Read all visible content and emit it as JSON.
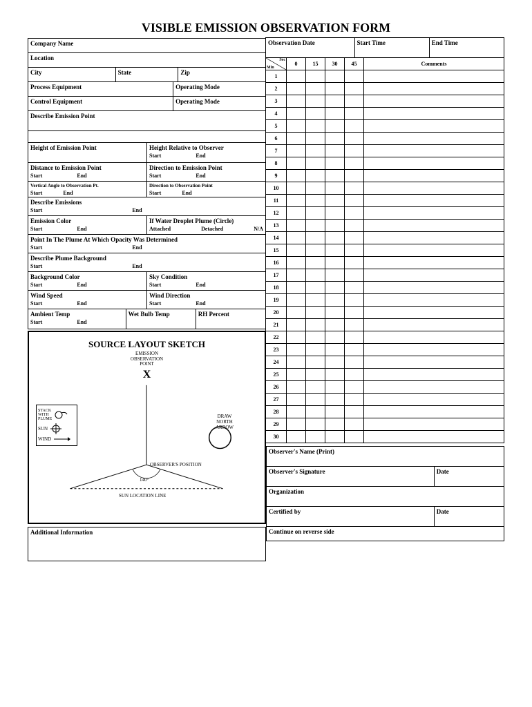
{
  "title": "VISIBLE EMISSION OBSERVATION FORM",
  "left": {
    "company_name": "Company Name",
    "location": "Location",
    "city": "City",
    "state": "State",
    "zip": "Zip",
    "process_equipment": "Process Equipment",
    "operating_mode1": "Operating Mode",
    "control_equipment": "Control Equipment",
    "operating_mode2": "Operating Mode",
    "describe_emission_point": "Describe Emission Point",
    "height_emission_point": "Height of Emission Point",
    "height_relative": "Height Relative to Observer",
    "distance_to_point": "Distance to Emission Point",
    "direction_to_point": "Direction to Emission Point",
    "vertical_angle": "Vertical Angle to Observation Pt.",
    "direction_to_obs": "Direction to Observation Point",
    "describe_emissions": "Describe Emissions",
    "emission_color": "Emission Color",
    "water_droplet": "If Water Droplet Plume (Circle)",
    "attached": "Attached",
    "detached": "Detached",
    "na": "N/A",
    "point_in_plume": "Point In The Plume At Which Opacity Was Determined",
    "describe_plume_bg": "Describe Plume Background",
    "background_color": "Background Color",
    "sky_condition": "Sky Condition",
    "wind_speed": "Wind Speed",
    "wind_direction": "Wind Direction",
    "ambient_temp": "Ambient Temp",
    "wet_bulb": "Wet Bulb Temp",
    "rh_percent": "RH Percent",
    "start": "Start",
    "end": "End",
    "additional_info": "Additional Information"
  },
  "sketch": {
    "title": "SOURCE LAYOUT SKETCH",
    "emission_obs_point": "EMISSION\nOBSERVATION\nPOINT",
    "x_mark": "X",
    "stack_plume": "STACK WITH PLUME",
    "sun": "SUN",
    "wind": "WIND",
    "draw_north": "DRAW NORTH ARROW",
    "observer_pos": "OBSERVER'S POSITION",
    "angle": "140°",
    "sun_location": "SUN LOCATION LINE"
  },
  "right": {
    "observation_date": "Observation Date",
    "start_time": "Start Time",
    "end_time": "End Time",
    "min": "Min",
    "sec": "Sec",
    "cols": [
      "0",
      "15",
      "30",
      "45"
    ],
    "comments": "Comments",
    "rows": [
      "1",
      "2",
      "3",
      "4",
      "5",
      "6",
      "7",
      "8",
      "9",
      "10",
      "11",
      "12",
      "13",
      "14",
      "15",
      "16",
      "17",
      "18",
      "19",
      "20",
      "21",
      "22",
      "23",
      "24",
      "25",
      "26",
      "27",
      "28",
      "29",
      "30"
    ],
    "observer_name": "Observer's Name (Print)",
    "observer_signature": "Observer's Signature",
    "date": "Date",
    "organization": "Organization",
    "certified_by": "Certified by",
    "continue": "Continue on reverse side"
  },
  "colors": {
    "border": "#000000",
    "background": "#ffffff",
    "text": "#000000"
  }
}
